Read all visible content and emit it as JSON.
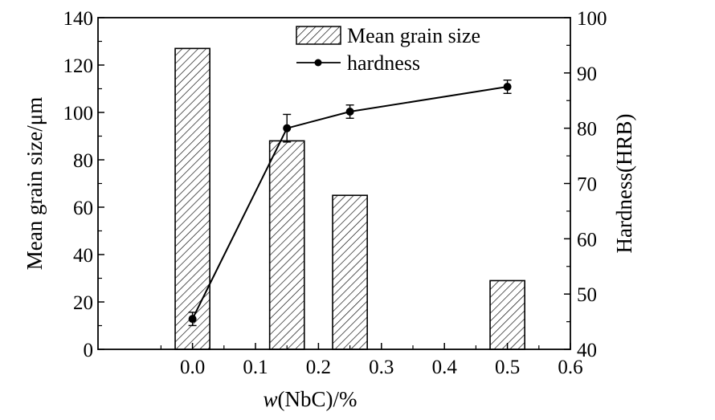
{
  "chart_data": {
    "type": "bar+line",
    "x_axis": {
      "label_italic": "w",
      "label_rest": "(NbC)/%",
      "range": [
        -0.15,
        0.6
      ],
      "ticks": [
        "0.0",
        "0.1",
        "0.2",
        "0.3",
        "0.4",
        "0.5",
        "0.6"
      ],
      "tick_values": [
        0.0,
        0.1,
        0.2,
        0.3,
        0.4,
        0.5,
        0.6
      ]
    },
    "y_left": {
      "label": "Mean grain size/μm",
      "range": [
        0,
        140
      ],
      "ticks": [
        "0",
        "20",
        "40",
        "60",
        "80",
        "100",
        "120",
        "140"
      ],
      "tick_values": [
        0,
        20,
        40,
        60,
        80,
        100,
        120,
        140
      ]
    },
    "y_right": {
      "label": "Hardness(HRB)",
      "range": [
        40,
        100
      ],
      "ticks": [
        "40",
        "50",
        "60",
        "70",
        "80",
        "90",
        "100"
      ],
      "tick_values": [
        40,
        50,
        60,
        70,
        80,
        90,
        100
      ]
    },
    "bars": {
      "name": "Mean grain size",
      "pattern": "hatched",
      "x": [
        0.0,
        0.15,
        0.25,
        0.5
      ],
      "values": [
        127,
        88,
        65,
        29
      ],
      "width": 0.055
    },
    "line": {
      "name": "hardness",
      "x": [
        0.0,
        0.15,
        0.25,
        0.5
      ],
      "values": [
        45.5,
        80,
        83,
        87.5
      ],
      "errors": [
        1.2,
        2.5,
        1.2,
        1.2
      ]
    },
    "legend": {
      "placement": "top-right"
    }
  }
}
